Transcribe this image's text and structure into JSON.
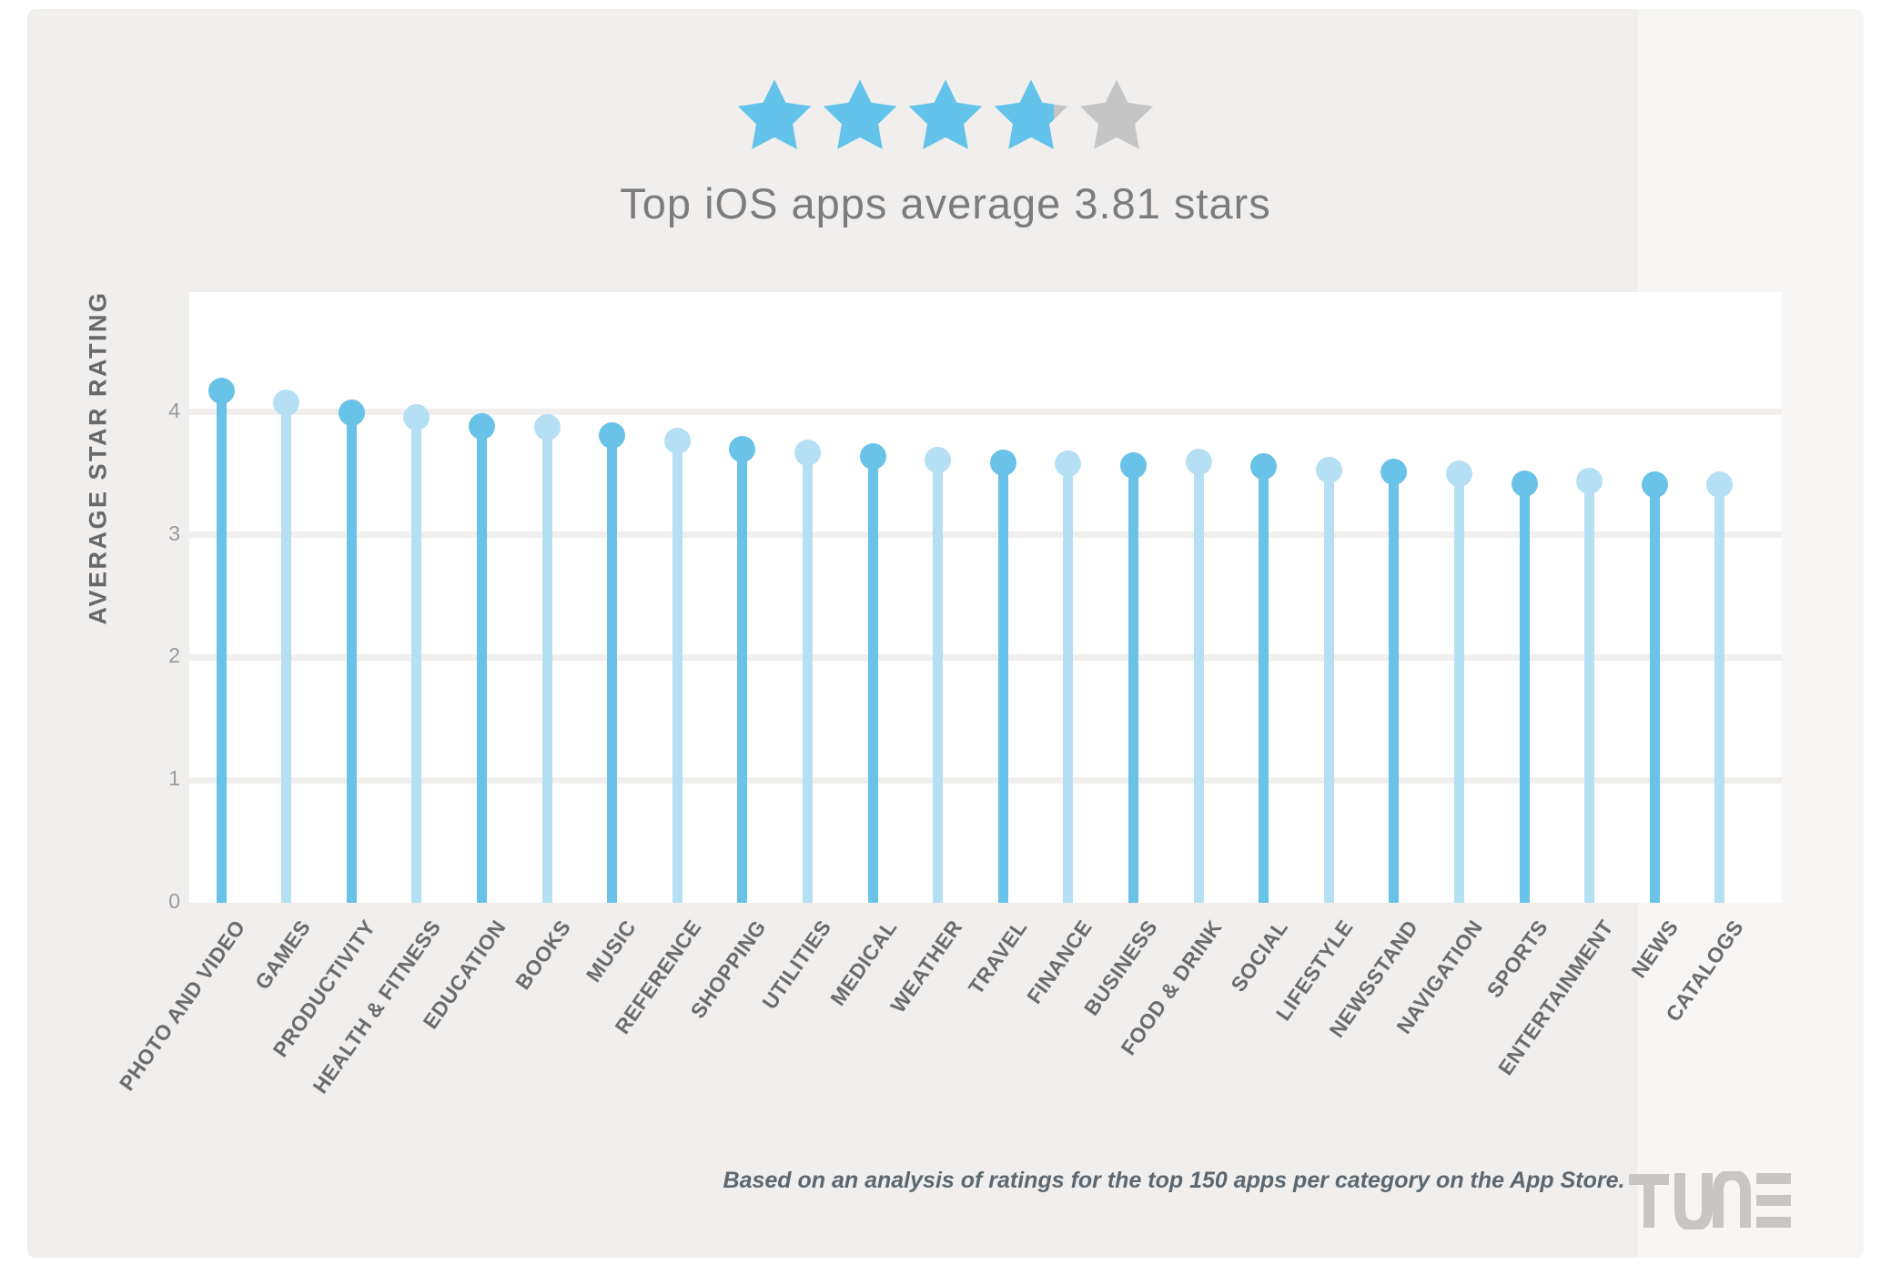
{
  "header": {
    "rating_value": 3.81,
    "stars_total": 5,
    "title": "Top iOS apps average 3.81 stars"
  },
  "chart_data": {
    "type": "bar",
    "subtype": "lollipop",
    "title": "Top iOS apps average 3.81 stars",
    "xlabel": "",
    "ylabel": "AVERAGE STAR RATING",
    "ylim": [
      0,
      5
    ],
    "yticks": [
      0,
      1,
      2,
      3,
      4
    ],
    "grid": true,
    "legend_position": "none",
    "categories": [
      "PHOTO AND VIDEO",
      "GAMES",
      "PRODUCTIVITY",
      "HEALTH & FITNESS",
      "EDUCATION",
      "BOOKS",
      "MUSIC",
      "REFERENCE",
      "SHOPPING",
      "UTILITIES",
      "MEDICAL",
      "WEATHER",
      "TRAVEL",
      "FINANCE",
      "BUSINESS",
      "FOOD & DRINK",
      "SOCIAL",
      "LIFESTYLE",
      "NEWSSTAND",
      "NAVIGATION",
      "SPORTS",
      "ENTERTAINMENT",
      "NEWS",
      "CATALOGS"
    ],
    "values": [
      4.18,
      4.08,
      4.0,
      3.96,
      3.89,
      3.88,
      3.81,
      3.77,
      3.7,
      3.67,
      3.64,
      3.61,
      3.59,
      3.58,
      3.57,
      3.6,
      3.56,
      3.53,
      3.52,
      3.5,
      3.42,
      3.44,
      3.41,
      3.41
    ]
  },
  "colors": {
    "bar_dark": "#69C2E8",
    "bar_light": "#B5E0F4",
    "star_filled": "#63C3EB",
    "star_empty": "#C5C5C5",
    "panel_bg": "#F0EFED",
    "plot_bg": "#FFFFFF",
    "gridline": "#F0EFED"
  },
  "footer": {
    "note": "Based on an analysis of ratings for the top 150 apps per category on the App Store.",
    "brand": "TUNE"
  }
}
